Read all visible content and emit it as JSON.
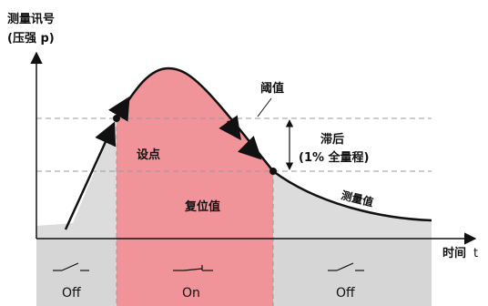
{
  "y_axis": {
    "label_line1": "测量讯号",
    "label_line2": "(压强 p)"
  },
  "x_axis": {
    "label_cn": "时间",
    "label_t": "t"
  },
  "annotations": {
    "threshold": "阈值",
    "setpoint": "设点",
    "reset_value": "复位值",
    "hysteresis_line1": "滞后",
    "hysteresis_line2": "(1% 全量程)",
    "measured_value": "测量值"
  },
  "switch_states": [
    {
      "label": "Off"
    },
    {
      "label": "On"
    },
    {
      "label": "Off"
    }
  ],
  "colors": {
    "on_region": "#f0949a",
    "off_region": "#dcdcdc",
    "curve": "#111111",
    "dashed": "#9a9a9a"
  }
}
